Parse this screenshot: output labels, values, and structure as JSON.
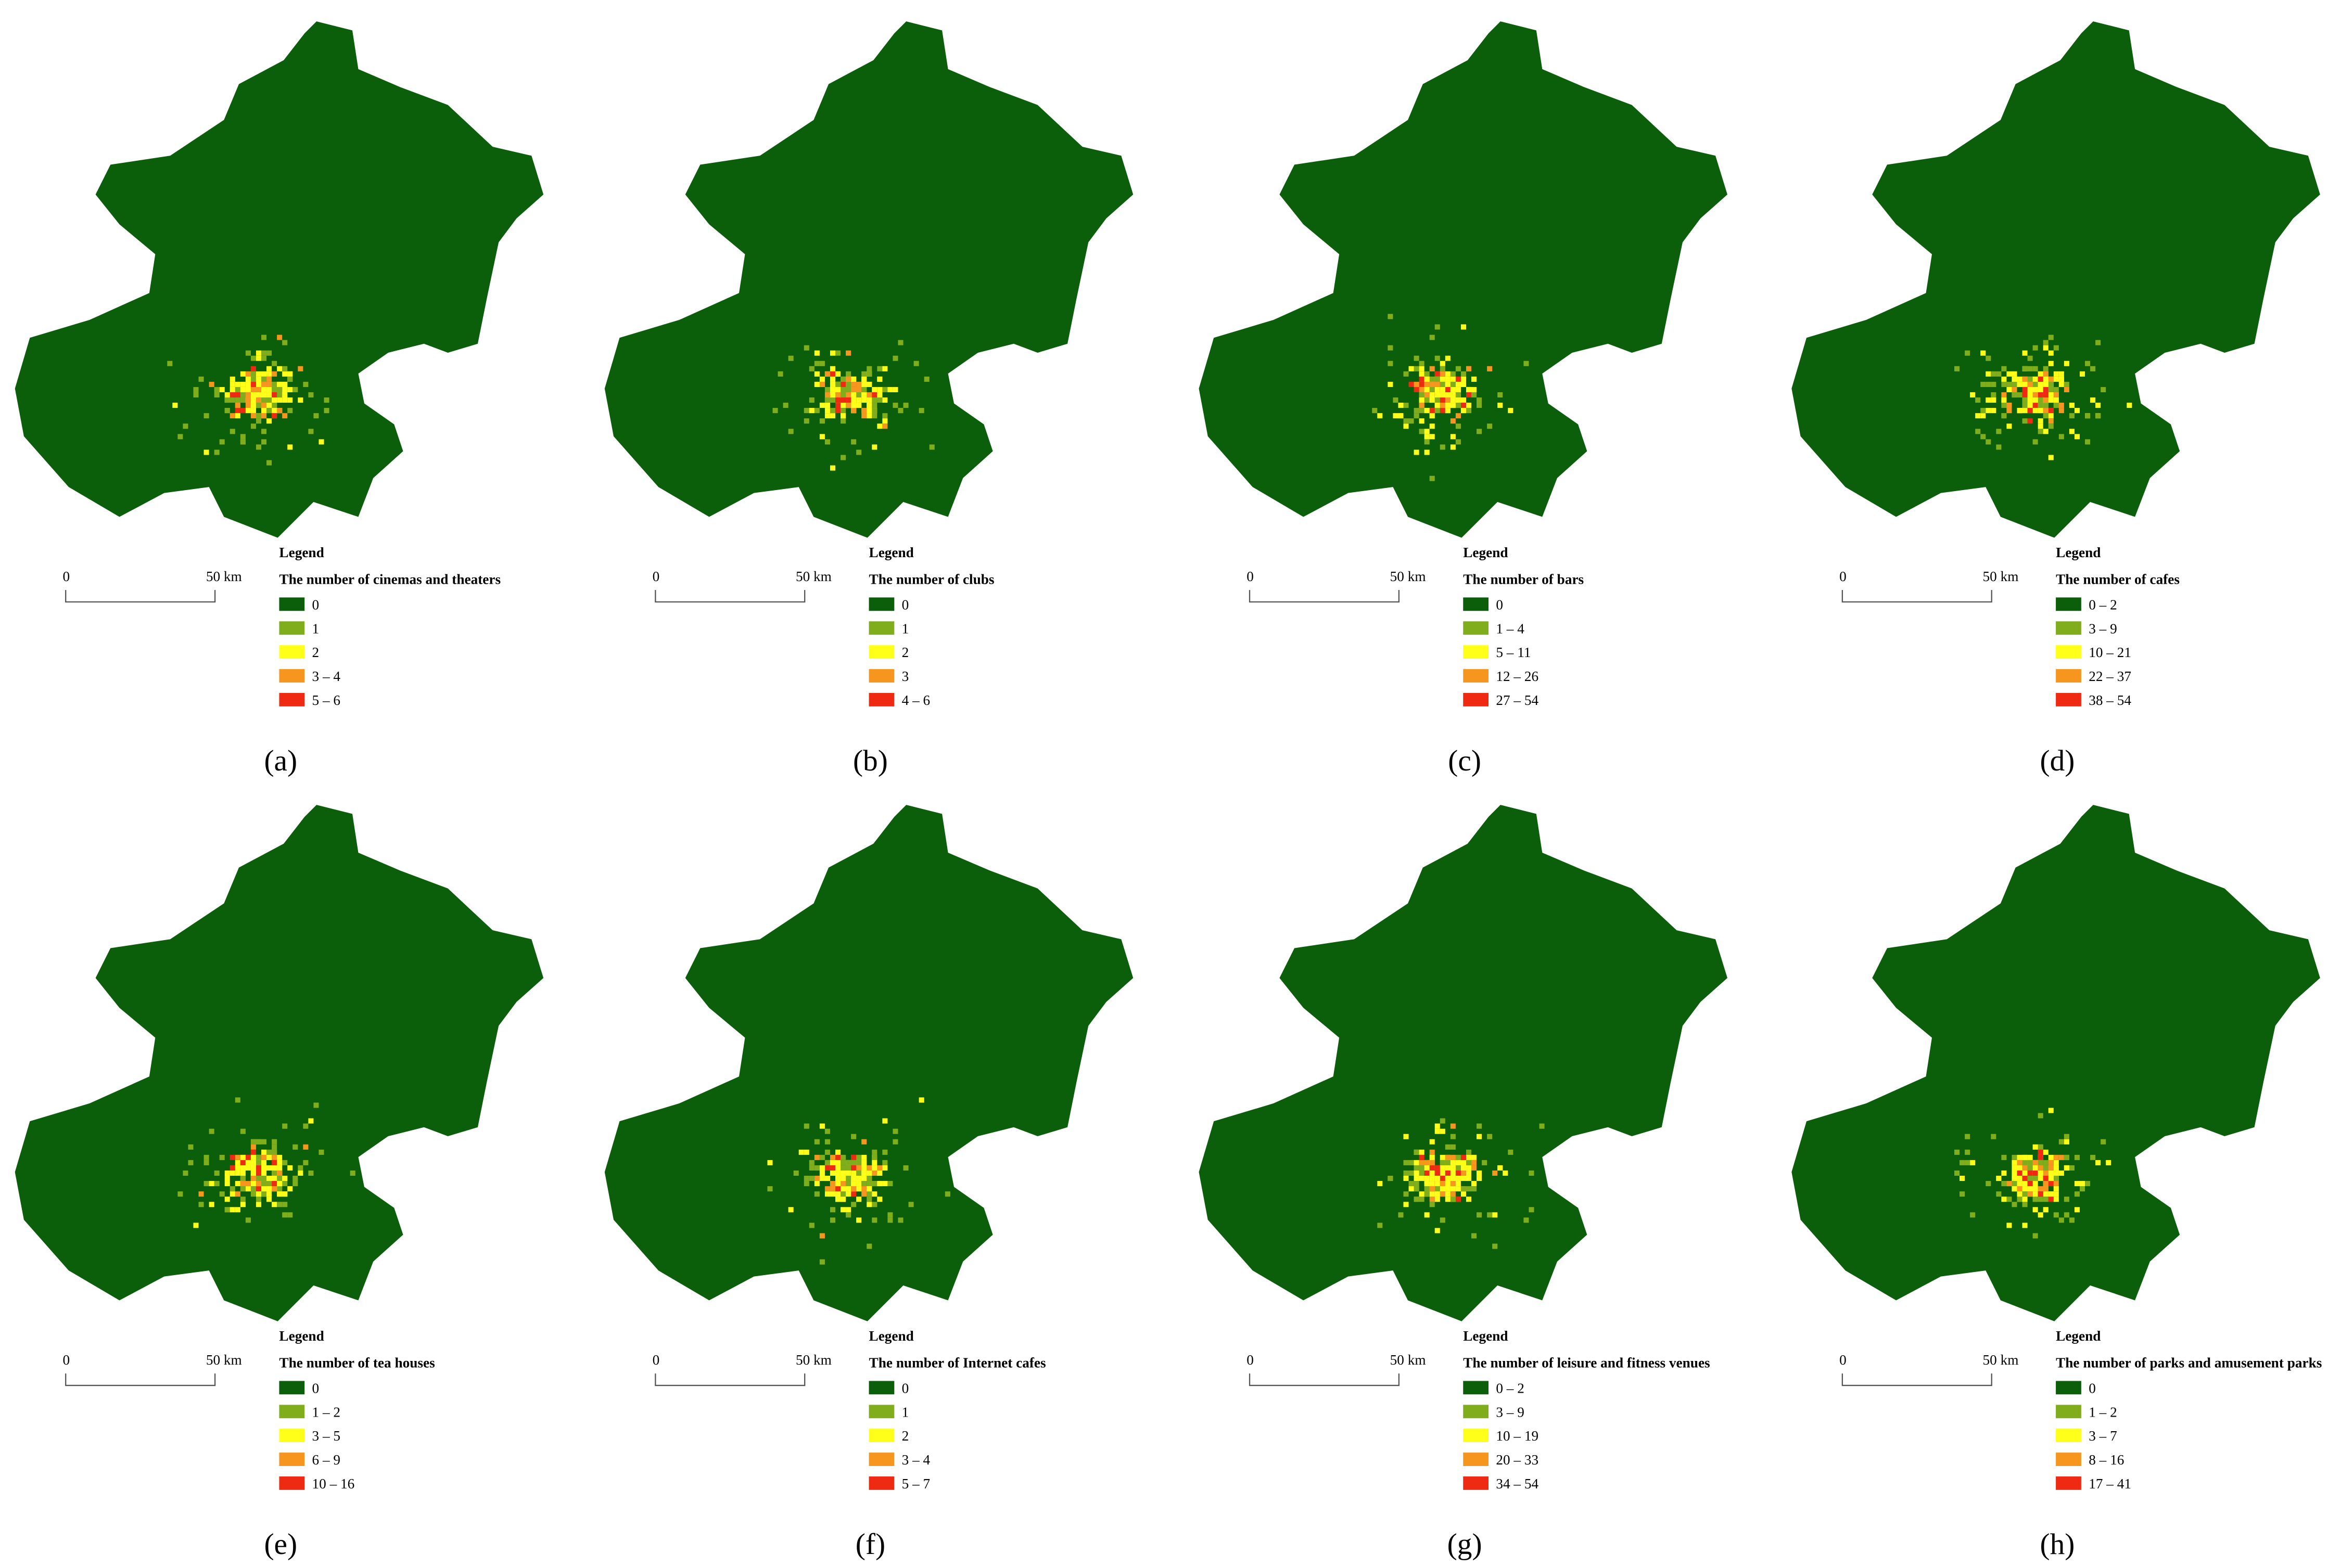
{
  "class_colors": [
    "#0b5f0b",
    "#80ad1c",
    "#ffff1a",
    "#f7961e",
    "#ee2a12"
  ],
  "panels": [
    {
      "label": "(a)",
      "legend_heading": "Legend",
      "legend_title": "The number of cinemas and theaters",
      "classes": [
        "0",
        "1",
        "2",
        "3 – 4",
        "5 – 6"
      ],
      "scale_labels": [
        "0",
        "50 km"
      ]
    },
    {
      "label": "(b)",
      "legend_heading": "Legend",
      "legend_title": "The number of clubs",
      "classes": [
        "0",
        "1",
        "2",
        "3",
        "4 – 6"
      ],
      "scale_labels": [
        "0",
        "50 km"
      ]
    },
    {
      "label": "(c)",
      "legend_heading": "Legend",
      "legend_title": "The number of bars",
      "classes": [
        "0",
        "1 – 4",
        "5 – 11",
        "12 – 26",
        "27 – 54"
      ],
      "scale_labels": [
        "0",
        "50 km"
      ]
    },
    {
      "label": "(d)",
      "legend_heading": "Legend",
      "legend_title": "The number of cafes",
      "classes": [
        "0 – 2",
        "3 – 9",
        "10 – 21",
        "22 – 37",
        "38 – 54"
      ],
      "scale_labels": [
        "0",
        "50 km"
      ]
    },
    {
      "label": "(e)",
      "legend_heading": "Legend",
      "legend_title": "The number of tea houses",
      "classes": [
        "0",
        "1 – 2",
        "3 – 5",
        "6 – 9",
        "10 – 16"
      ],
      "scale_labels": [
        "0",
        "50 km"
      ]
    },
    {
      "label": "(f)",
      "legend_heading": "Legend",
      "legend_title": "The number of Internet cafes",
      "classes": [
        "0",
        "1",
        "2",
        "3 – 4",
        "5 – 7"
      ],
      "scale_labels": [
        "0",
        "50 km"
      ]
    },
    {
      "label": "(g)",
      "legend_heading": "Legend",
      "legend_title": "The number of leisure and fitness venues",
      "classes": [
        "0 – 2",
        "3 – 9",
        "10 – 19",
        "20 – 33",
        "34 – 54"
      ],
      "scale_labels": [
        "0",
        "50 km"
      ]
    },
    {
      "label": "(h)",
      "legend_heading": "Legend",
      "legend_title": "The number of parks and amusement parks",
      "classes": [
        "0",
        "1 – 2",
        "3 – 7",
        "8 – 16",
        "17 – 41"
      ],
      "scale_labels": [
        "0",
        "50 km"
      ]
    }
  ]
}
